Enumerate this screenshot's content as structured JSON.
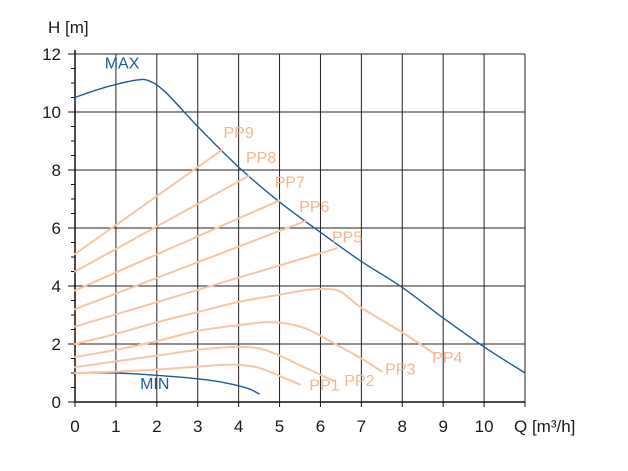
{
  "chart_data": {
    "type": "line",
    "title": "",
    "xlabel": "Q [m³/h]",
    "ylabel": "H [m]",
    "xlim": [
      0,
      11
    ],
    "ylim": [
      0,
      12
    ],
    "x_ticks": [
      0,
      1,
      2,
      3,
      4,
      5,
      6,
      7,
      8,
      9,
      10
    ],
    "x_tick_labels": [
      "0",
      "1",
      "2",
      "3",
      "4",
      "5",
      "6",
      "7",
      "8",
      "9",
      "10"
    ],
    "x_axis_end_label": "Q [m³/h]",
    "y_ticks": [
      0,
      2,
      4,
      6,
      8,
      10,
      12
    ],
    "y_tick_labels": [
      "0",
      "2",
      "4",
      "6",
      "8",
      "10",
      "12"
    ],
    "grid": true,
    "colors": {
      "max_min": "#1f5a96",
      "pp": "#f5c6a5",
      "pp_label": "#f4b58e",
      "grid": "#222222",
      "axis": "#111111"
    },
    "series": [
      {
        "name": "MAX",
        "label_at": [
          1.15,
          11.5
        ],
        "points": [
          [
            0,
            10.5
          ],
          [
            0.5,
            10.75
          ],
          [
            1.0,
            10.95
          ],
          [
            1.5,
            11.1
          ],
          [
            1.8,
            11.08
          ],
          [
            2.2,
            10.7
          ],
          [
            3.0,
            9.5
          ],
          [
            4.0,
            8.1
          ],
          [
            5.0,
            6.9
          ],
          [
            6.0,
            5.85
          ],
          [
            7.0,
            4.85
          ],
          [
            8.0,
            3.95
          ],
          [
            9.0,
            2.9
          ],
          [
            10.0,
            1.9
          ],
          [
            11.0,
            1.0
          ]
        ]
      },
      {
        "name": "MIN",
        "label_at": [
          1.95,
          0.45
        ],
        "points": [
          [
            0,
            1.0
          ],
          [
            1.0,
            1.0
          ],
          [
            2.0,
            0.92
          ],
          [
            3.0,
            0.8
          ],
          [
            3.6,
            0.68
          ],
          [
            4.2,
            0.48
          ],
          [
            4.5,
            0.28
          ]
        ]
      },
      {
        "name": "PP9",
        "label_at": [
          4.0,
          9.1
        ],
        "points": [
          [
            0,
            5.1
          ],
          [
            3.6,
            8.7
          ]
        ]
      },
      {
        "name": "PP8",
        "label_at": [
          4.55,
          8.25
        ],
        "points": [
          [
            0,
            4.5
          ],
          [
            4.25,
            7.8
          ]
        ]
      },
      {
        "name": "PP7",
        "label_at": [
          5.25,
          7.4
        ],
        "points": [
          [
            0,
            3.85
          ],
          [
            5.0,
            6.95
          ]
        ]
      },
      {
        "name": "PP6",
        "label_at": [
          5.85,
          6.55
        ],
        "points": [
          [
            0,
            3.2
          ],
          [
            5.65,
            6.25
          ]
        ]
      },
      {
        "name": "PP5",
        "label_at": [
          6.65,
          5.5
        ],
        "points": [
          [
            0,
            2.6
          ],
          [
            6.4,
            5.3
          ]
        ]
      },
      {
        "name": "PP4",
        "label_at": [
          9.1,
          1.35
        ],
        "points": [
          [
            0,
            2.0
          ],
          [
            1.0,
            2.35
          ],
          [
            2.0,
            2.75
          ],
          [
            3.0,
            3.1
          ],
          [
            4.0,
            3.45
          ],
          [
            5.0,
            3.7
          ],
          [
            5.6,
            3.85
          ],
          [
            6.1,
            3.9
          ],
          [
            6.5,
            3.8
          ],
          [
            7.0,
            3.25
          ],
          [
            8.0,
            2.4
          ],
          [
            8.8,
            1.65
          ]
        ]
      },
      {
        "name": "PP3",
        "label_at": [
          7.95,
          0.95
        ],
        "points": [
          [
            0,
            1.55
          ],
          [
            1.0,
            1.8
          ],
          [
            2.0,
            2.1
          ],
          [
            3.0,
            2.45
          ],
          [
            4.0,
            2.65
          ],
          [
            4.7,
            2.75
          ],
          [
            5.2,
            2.7
          ],
          [
            5.7,
            2.5
          ],
          [
            6.3,
            2.05
          ],
          [
            7.0,
            1.5
          ],
          [
            7.5,
            1.05
          ]
        ]
      },
      {
        "name": "PP2",
        "label_at": [
          6.95,
          0.55
        ],
        "points": [
          [
            0,
            1.2
          ],
          [
            1.0,
            1.4
          ],
          [
            2.0,
            1.6
          ],
          [
            3.0,
            1.8
          ],
          [
            3.6,
            1.88
          ],
          [
            4.0,
            1.9
          ],
          [
            4.5,
            1.85
          ],
          [
            5.0,
            1.6
          ],
          [
            5.6,
            1.2
          ],
          [
            6.3,
            0.75
          ]
        ]
      },
      {
        "name": "PP1",
        "label_at": [
          6.1,
          0.4
        ],
        "points": [
          [
            0,
            1.0
          ],
          [
            1.0,
            1.05
          ],
          [
            2.0,
            1.12
          ],
          [
            3.0,
            1.22
          ],
          [
            3.6,
            1.28
          ],
          [
            4.0,
            1.28
          ],
          [
            4.5,
            1.18
          ],
          [
            5.0,
            0.9
          ],
          [
            5.5,
            0.6
          ]
        ]
      }
    ]
  }
}
